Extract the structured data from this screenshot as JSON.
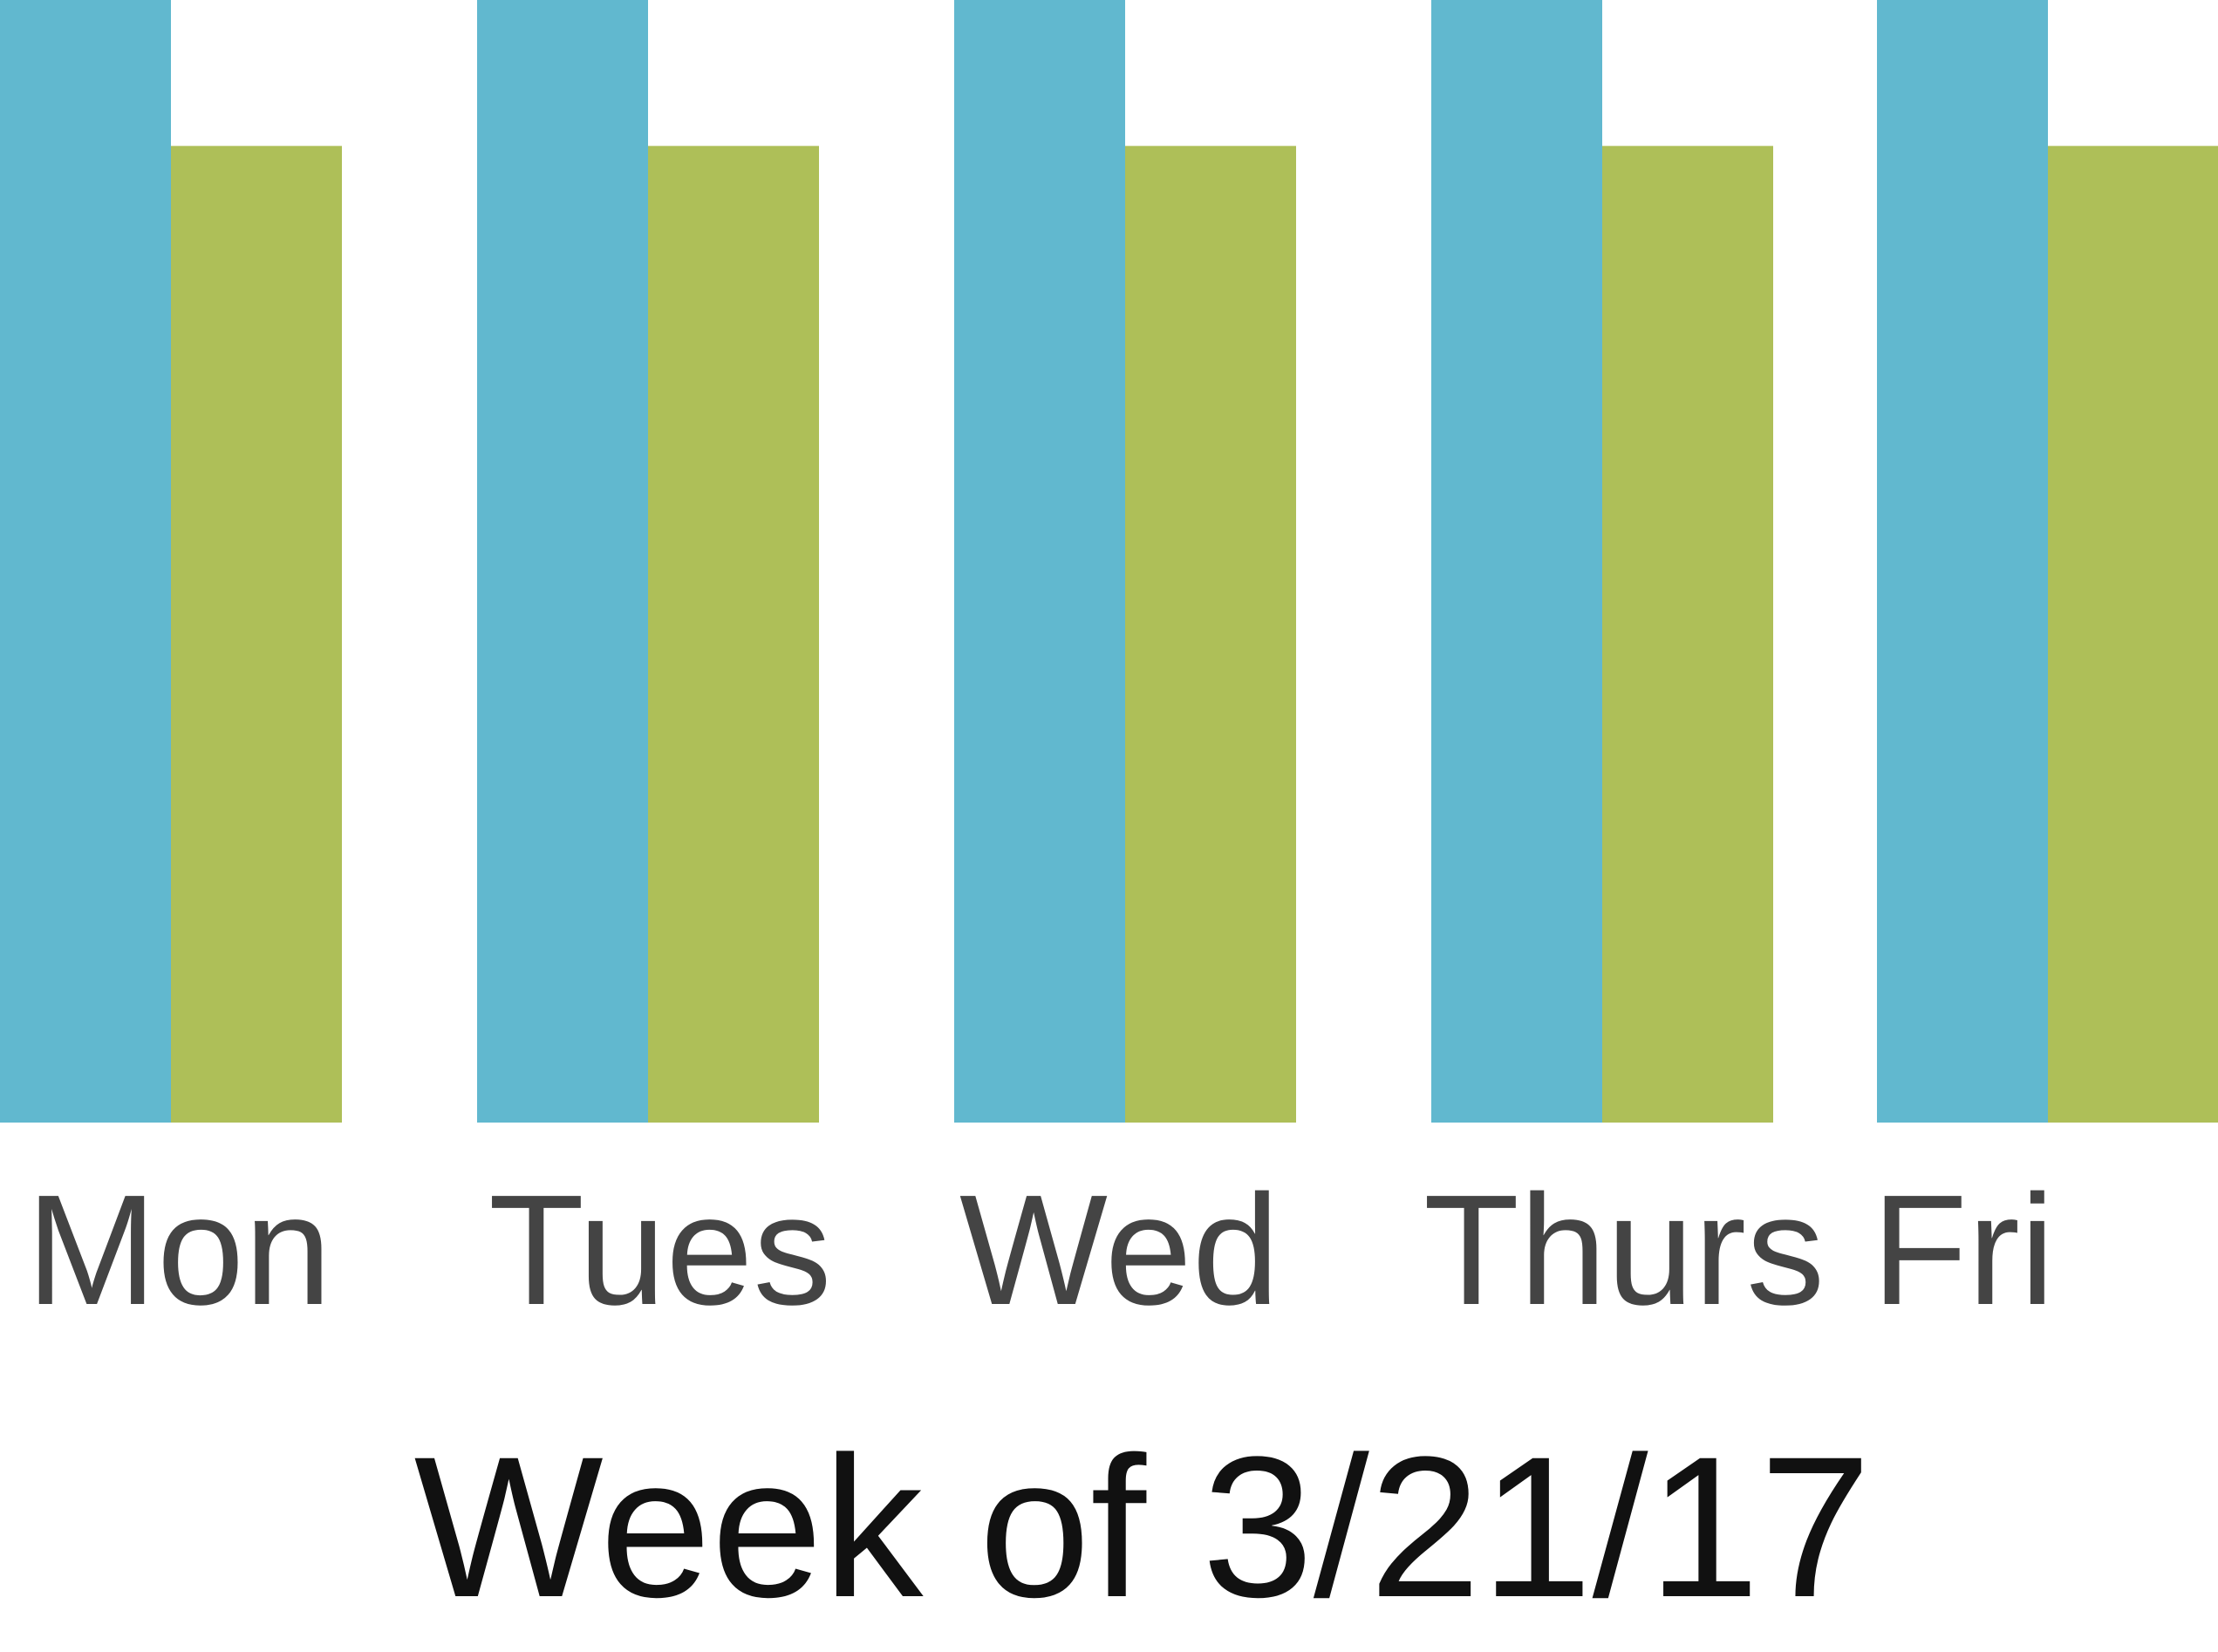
{
  "chart_data": {
    "type": "bar",
    "title": "",
    "xlabel": "Week of 3/21/17",
    "ylabel": "",
    "categories": [
      "Mon",
      "Tues",
      "Wed",
      "Thurs",
      "Fri"
    ],
    "series": [
      {
        "values": [
          100,
          100,
          100,
          100,
          100
        ],
        "color": "#61b8cf"
      },
      {
        "values": [
          87,
          87,
          87,
          87,
          87
        ],
        "color": "#aebf58"
      }
    ],
    "ylim": [
      0,
      100
    ],
    "grid": false,
    "legend": "none",
    "axes_visible": false
  }
}
